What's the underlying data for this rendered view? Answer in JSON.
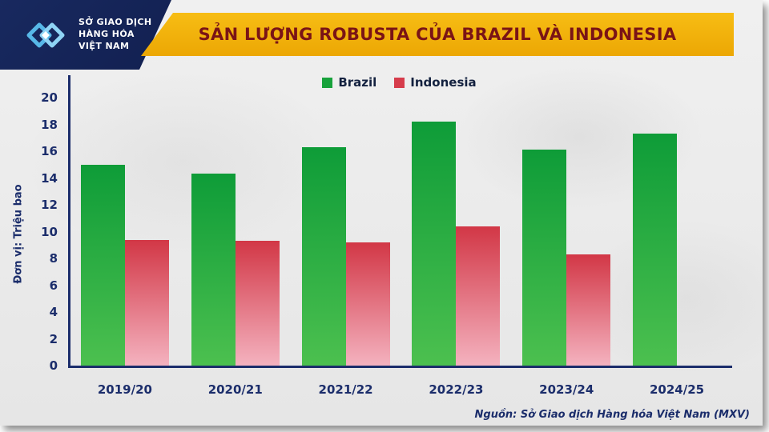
{
  "colors": {
    "navy": "#1b2d6b",
    "banner_gold": "#f3b50c",
    "title_text": "#7a1416",
    "brazil_green": "#18a23c",
    "indonesia_red": "#d63c4b"
  },
  "header": {
    "logo": {
      "lines": [
        "SỞ GIAO DỊCH",
        "HÀNG HÓA",
        "VIỆT NAM"
      ]
    },
    "title": "SẢN LƯỢNG ROBUSTA CỦA BRAZIL VÀ INDONESIA"
  },
  "chart_data": {
    "type": "bar",
    "title": "SẢN LƯỢNG ROBUSTA CỦA BRAZIL VÀ INDONESIA",
    "categories": [
      "2019/20",
      "2020/21",
      "2021/22",
      "2022/23",
      "2023/24",
      "2024/25"
    ],
    "series": [
      {
        "name": "Brazil",
        "color": "#18a23c",
        "gradient": [
          "#0e9c38",
          "#4cc04f"
        ],
        "values": [
          15.0,
          14.3,
          16.3,
          18.2,
          16.1,
          17.3
        ]
      },
      {
        "name": "Indonesia",
        "color": "#d63c4b",
        "gradient": [
          "#d23746",
          "#f4b2bf"
        ],
        "values": [
          9.4,
          9.3,
          9.2,
          10.4,
          8.3,
          null
        ]
      }
    ],
    "ylabel": "Đơn vị: Triệu bao",
    "ylim": [
      0,
      20
    ],
    "ytick_step": 2,
    "grid": false,
    "legend_position": "top"
  },
  "footer": {
    "source": "Nguồn: Sở Giao dịch Hàng hóa Việt Nam (MXV)"
  }
}
